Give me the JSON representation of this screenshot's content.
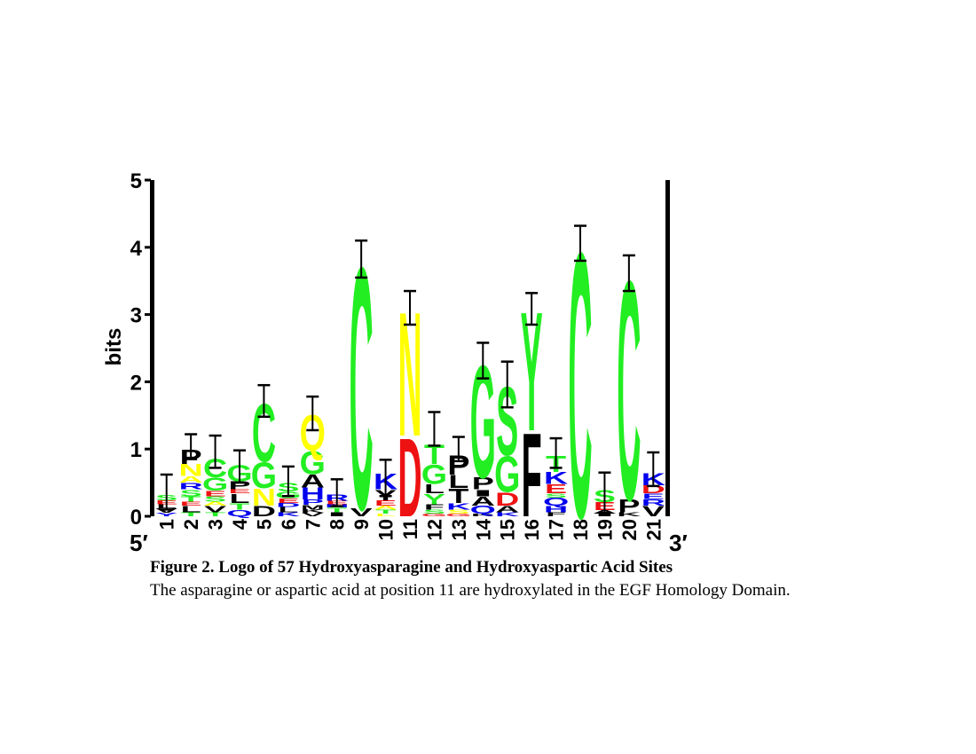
{
  "figure": {
    "caption_title": "Figure 2. Logo of 57 Hydroxyasparagine and Hydroxyaspartic Acid Sites",
    "caption_text": "The asparagine or aspartic acid at position 11 are hydroxylated in the EGF Homology Domain."
  },
  "colors": {
    "green": "#22ee22",
    "yellow": "#ffff00",
    "red": "#ee1111",
    "blue": "#0000ee",
    "black": "#000000"
  },
  "chart_data": {
    "type": "sequence-logo",
    "ylabel": "bits",
    "ylim": [
      0,
      5
    ],
    "yticks": [
      0,
      1,
      2,
      3,
      4,
      5
    ],
    "end_labels": {
      "left": "5′",
      "right": "3′"
    },
    "positions": [
      {
        "pos": "1",
        "err": [
          0.1,
          0.62
        ],
        "letters": [
          [
            "Y",
            "blue",
            0.05
          ],
          [
            "V",
            "black",
            0.07
          ],
          [
            "L",
            "black",
            0.06
          ],
          [
            "E",
            "red",
            0.06
          ],
          [
            "S",
            "green",
            0.08
          ]
        ]
      },
      {
        "pos": "2",
        "err": [
          0.85,
          1.22
        ],
        "letters": [
          [
            "T",
            "green",
            0.06
          ],
          [
            "L",
            "black",
            0.1
          ],
          [
            "E",
            "red",
            0.06
          ],
          [
            "T",
            "green",
            0.08
          ],
          [
            "S",
            "green",
            0.1
          ],
          [
            "R",
            "blue",
            0.1
          ],
          [
            "A",
            "yellow",
            0.1
          ],
          [
            "N",
            "yellow",
            0.18
          ],
          [
            "P",
            "black",
            0.22
          ]
        ]
      },
      {
        "pos": "3",
        "err": [
          0.72,
          1.2
        ],
        "letters": [
          [
            "T",
            "green",
            0.06
          ],
          [
            "V",
            "black",
            0.1
          ],
          [
            "A",
            "yellow",
            0.06
          ],
          [
            "S",
            "green",
            0.08
          ],
          [
            "E",
            "red",
            0.08
          ],
          [
            "G",
            "green",
            0.2
          ],
          [
            "C",
            "green",
            0.28
          ]
        ]
      },
      {
        "pos": "4",
        "err": [
          0.5,
          0.98
        ],
        "letters": [
          [
            "Q",
            "blue",
            0.1
          ],
          [
            "T",
            "green",
            0.1
          ],
          [
            "L",
            "black",
            0.14
          ],
          [
            "E",
            "red",
            0.06
          ],
          [
            "P",
            "black",
            0.12
          ],
          [
            "G",
            "green",
            0.25
          ]
        ]
      },
      {
        "pos": "5",
        "err": [
          1.48,
          1.95
        ],
        "letters": [
          [
            "D",
            "black",
            0.16
          ],
          [
            "N",
            "yellow",
            0.26
          ],
          [
            "G",
            "green",
            0.4
          ],
          [
            "C",
            "green",
            0.88
          ]
        ]
      },
      {
        "pos": "6",
        "err": [
          0.3,
          0.74
        ],
        "letters": [
          [
            "K",
            "blue",
            0.06
          ],
          [
            "L",
            "black",
            0.08
          ],
          [
            "D",
            "blue",
            0.06
          ],
          [
            "E",
            "red",
            0.07
          ],
          [
            "G",
            "green",
            0.1
          ],
          [
            "S",
            "green",
            0.13
          ]
        ]
      },
      {
        "pos": "7",
        "err": [
          1.28,
          1.78
        ],
        "letters": [
          [
            "V",
            "black",
            0.05
          ],
          [
            "K",
            "black",
            0.05
          ],
          [
            "M",
            "black",
            0.07
          ],
          [
            "P",
            "blue",
            0.08
          ],
          [
            "H",
            "blue",
            0.18
          ],
          [
            "A",
            "black",
            0.2
          ],
          [
            "G",
            "green",
            0.35
          ],
          [
            "Q",
            "yellow",
            0.55
          ]
        ]
      },
      {
        "pos": "8",
        "err": [
          0.15,
          0.55
        ],
        "letters": [
          [
            "I",
            "black",
            0.06
          ],
          [
            "T",
            "green",
            0.07
          ],
          [
            "N",
            "blue",
            0.05
          ],
          [
            "E",
            "red",
            0.05
          ],
          [
            "R",
            "blue",
            0.1
          ]
        ]
      },
      {
        "pos": "9",
        "err": [
          3.55,
          4.1
        ],
        "letters": [
          [
            "V",
            "black",
            0.12
          ],
          [
            "C",
            "green",
            3.7
          ]
        ]
      },
      {
        "pos": "10",
        "err": [
          0.3,
          0.84
        ],
        "letters": [
          [
            "L",
            "yellow",
            0.04
          ],
          [
            "T",
            "green",
            0.06
          ],
          [
            "A",
            "yellow",
            0.06
          ],
          [
            "E",
            "red",
            0.08
          ],
          [
            "Y",
            "black",
            0.16
          ],
          [
            "K",
            "blue",
            0.24
          ]
        ]
      },
      {
        "pos": "11",
        "err": [
          2.85,
          3.35
        ],
        "letters": [
          [
            "D",
            "red",
            1.2
          ],
          [
            "N",
            "yellow",
            1.9
          ]
        ]
      },
      {
        "pos": "12",
        "err": [
          1.05,
          1.55
        ],
        "letters": [
          [
            "G",
            "red",
            0.04
          ],
          [
            "S",
            "green",
            0.06
          ],
          [
            "F",
            "black",
            0.08
          ],
          [
            "Y",
            "green",
            0.16
          ],
          [
            "L",
            "black",
            0.14
          ],
          [
            "G",
            "green",
            0.3
          ],
          [
            "T",
            "green",
            0.3
          ]
        ]
      },
      {
        "pos": "13",
        "err": [
          0.82,
          1.18
        ],
        "letters": [
          [
            "G",
            "red",
            0.04
          ],
          [
            "S",
            "yellow",
            0.06
          ],
          [
            "K",
            "blue",
            0.1
          ],
          [
            "T",
            "black",
            0.22
          ],
          [
            "L",
            "black",
            0.2
          ],
          [
            "P",
            "black",
            0.3
          ]
        ]
      },
      {
        "pos": "14",
        "err": [
          2.05,
          2.58
        ],
        "letters": [
          [
            "K",
            "black",
            0.04
          ],
          [
            "Q",
            "blue",
            0.12
          ],
          [
            "A",
            "black",
            0.14
          ],
          [
            "I",
            "black",
            0.1
          ],
          [
            "P",
            "black",
            0.18
          ],
          [
            "G",
            "green",
            1.72
          ]
        ]
      },
      {
        "pos": "15",
        "err": [
          1.62,
          2.3
        ],
        "letters": [
          [
            "K",
            "blue",
            0.06
          ],
          [
            "A",
            "black",
            0.1
          ],
          [
            "D",
            "red",
            0.2
          ],
          [
            "G",
            "green",
            0.55
          ],
          [
            "S",
            "green",
            1.05
          ]
        ]
      },
      {
        "pos": "16",
        "err": [
          2.85,
          3.32
        ],
        "letters": [
          [
            "F",
            "black",
            1.28
          ],
          [
            "Y",
            "green",
            1.82
          ]
        ]
      },
      {
        "pos": "17",
        "err": [
          0.72,
          1.16
        ],
        "letters": [
          [
            "F",
            "black",
            0.06
          ],
          [
            "H",
            "blue",
            0.1
          ],
          [
            "Q",
            "blue",
            0.12
          ],
          [
            "S",
            "green",
            0.06
          ],
          [
            "E",
            "red",
            0.14
          ],
          [
            "K",
            "blue",
            0.18
          ],
          [
            "T",
            "green",
            0.25
          ]
        ]
      },
      {
        "pos": "18",
        "err": [
          3.8,
          4.32
        ],
        "letters": [
          [
            "C",
            "green",
            4.05
          ]
        ]
      },
      {
        "pos": "19",
        "err": [
          0.05,
          0.65
        ],
        "letters": [
          [
            "I",
            "black",
            0.04
          ],
          [
            "A",
            "black",
            0.05
          ],
          [
            "E",
            "red",
            0.12
          ],
          [
            "S",
            "green",
            0.18
          ]
        ]
      },
      {
        "pos": "20",
        "err": [
          3.35,
          3.88
        ],
        "letters": [
          [
            "K",
            "black",
            0.06
          ],
          [
            "P",
            "black",
            0.2
          ],
          [
            "C",
            "green",
            3.35
          ]
        ]
      },
      {
        "pos": "21",
        "err": [
          0.45,
          0.95
        ],
        "letters": [
          [
            "V",
            "black",
            0.16
          ],
          [
            "R",
            "blue",
            0.1
          ],
          [
            "E",
            "blue",
            0.08
          ],
          [
            "D",
            "red",
            0.12
          ],
          [
            "K",
            "blue",
            0.18
          ]
        ]
      }
    ]
  }
}
